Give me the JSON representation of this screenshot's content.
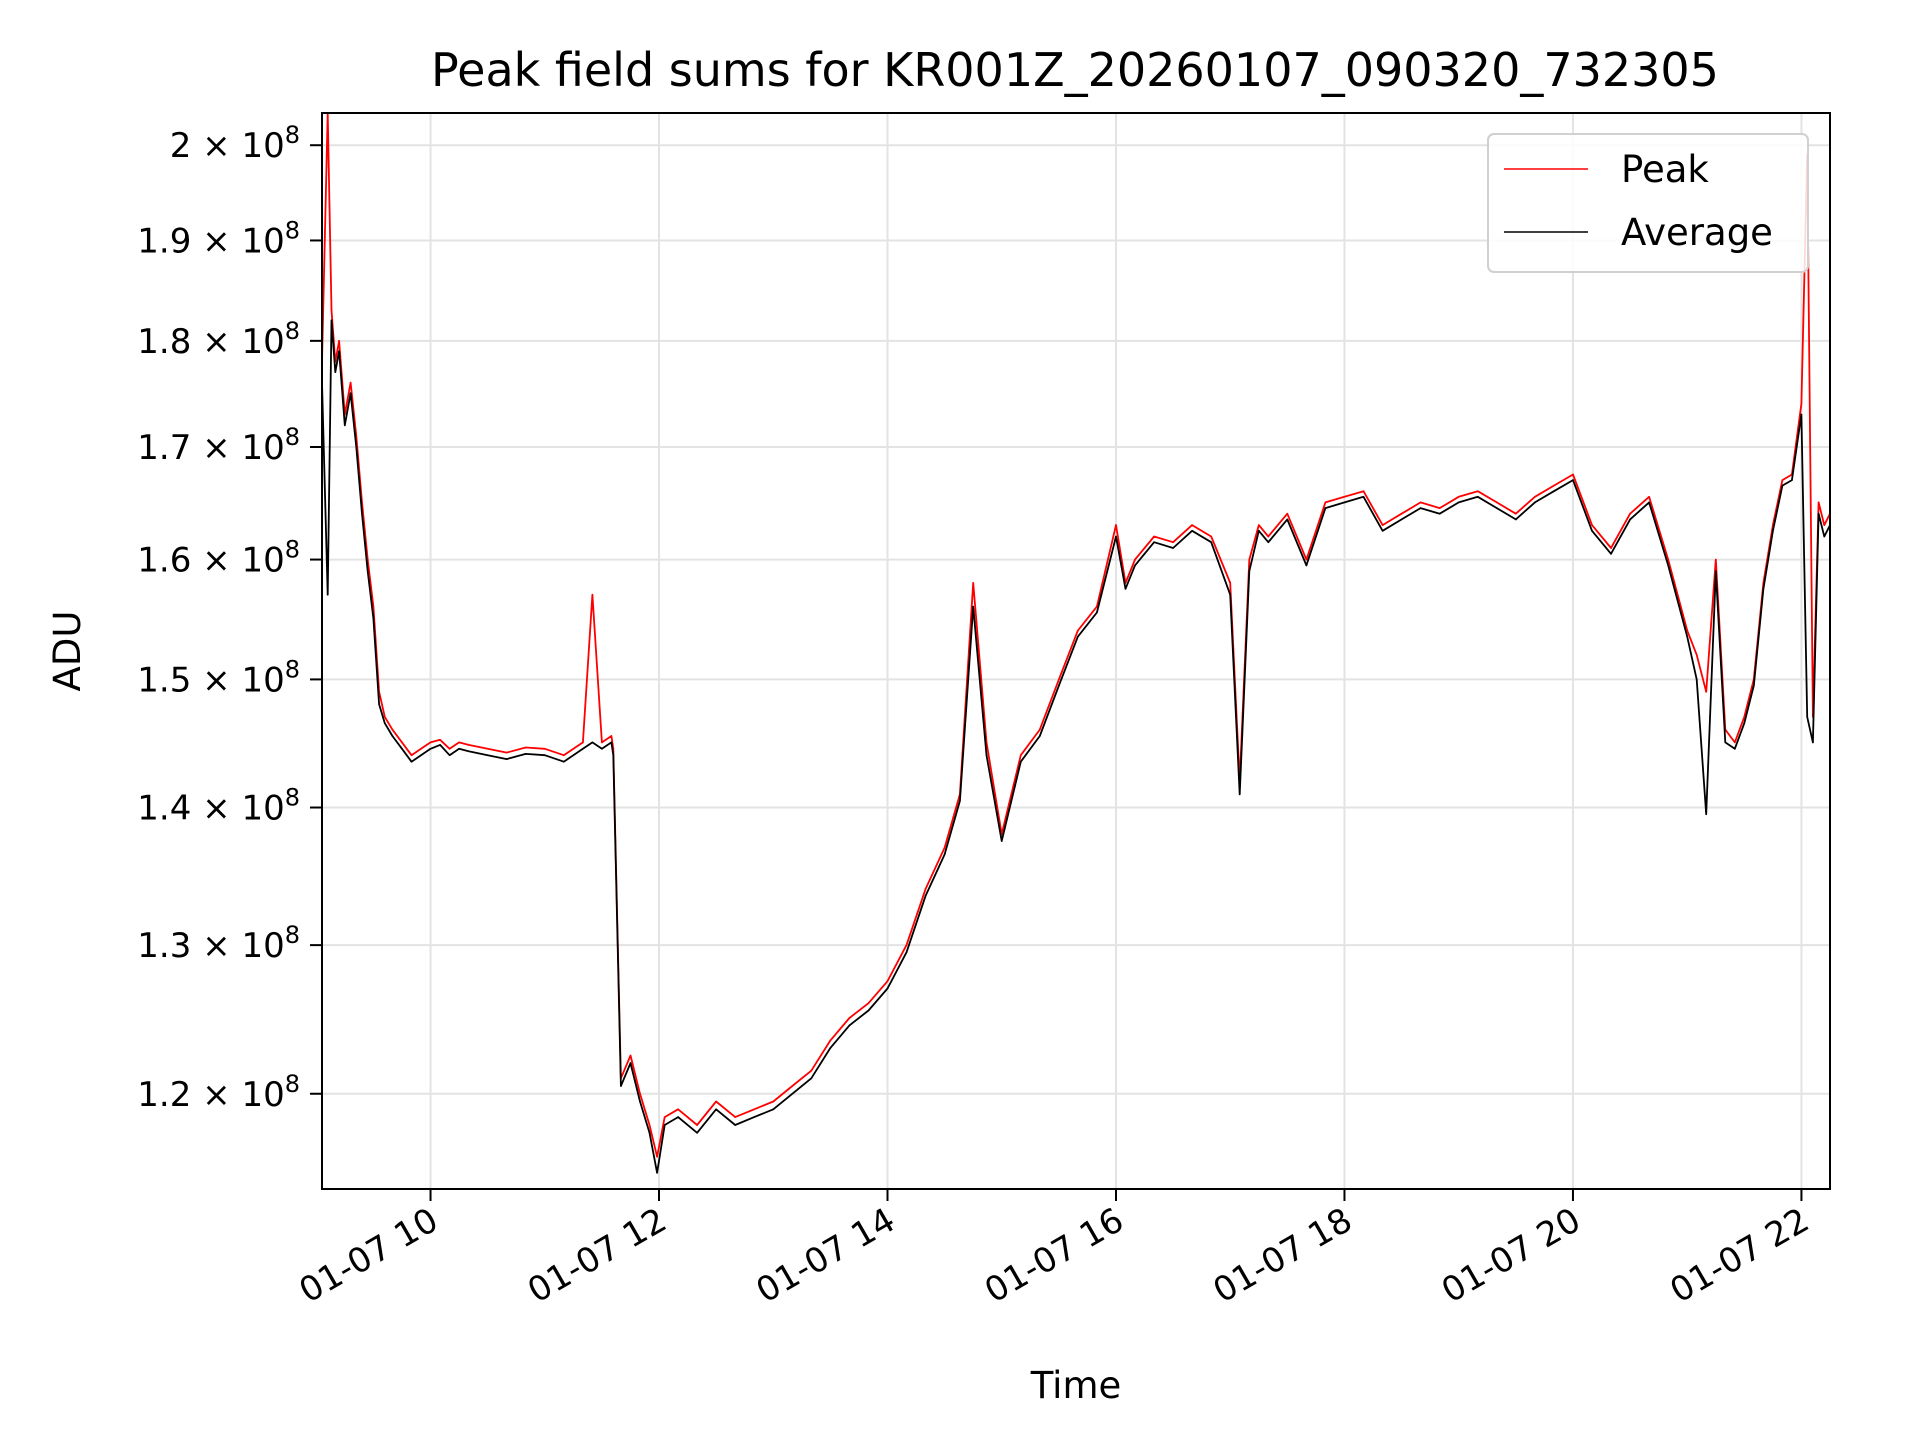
{
  "chart_data": {
    "type": "line",
    "title": "Peak field sums for KR001Z_20260107_090320_732305",
    "xlabel": "Time",
    "ylabel": "ADU",
    "yscale": "log",
    "xlim": [
      "01-07 09:03",
      "01-07 22:15"
    ],
    "ylim": [
      114000000,
      203500000
    ],
    "x_ticks": [
      {
        "t": "01-07 10:00",
        "label": "01-07 10"
      },
      {
        "t": "01-07 12:00",
        "label": "01-07 12"
      },
      {
        "t": "01-07 14:00",
        "label": "01-07 14"
      },
      {
        "t": "01-07 16:00",
        "label": "01-07 16"
      },
      {
        "t": "01-07 18:00",
        "label": "01-07 18"
      },
      {
        "t": "01-07 20:00",
        "label": "01-07 20"
      },
      {
        "t": "01-07 22:00",
        "label": "01-07 22"
      }
    ],
    "y_ticks": [
      {
        "value": 120000000,
        "coef": "1.2",
        "exp": "8"
      },
      {
        "value": 130000000,
        "coef": "1.3",
        "exp": "8"
      },
      {
        "value": 140000000,
        "coef": "1.4",
        "exp": "8"
      },
      {
        "value": 150000000,
        "coef": "1.5",
        "exp": "8"
      },
      {
        "value": 160000000,
        "coef": "1.6",
        "exp": "8"
      },
      {
        "value": 170000000,
        "coef": "1.7",
        "exp": "8"
      },
      {
        "value": 180000000,
        "coef": "1.8",
        "exp": "8"
      },
      {
        "value": 190000000,
        "coef": "1.9",
        "exp": "8"
      },
      {
        "value": 200000000,
        "coef": "2",
        "exp": "8"
      }
    ],
    "grid": true,
    "legend_position": "top-right",
    "series": [
      {
        "name": "Peak",
        "color": "#ff0000"
      },
      {
        "name": "Average",
        "color": "#000000"
      }
    ],
    "x": [
      "01-07 09:03",
      "01-07 09:06",
      "01-07 09:08",
      "01-07 09:10",
      "01-07 09:12",
      "01-07 09:15",
      "01-07 09:18",
      "01-07 09:21",
      "01-07 09:24",
      "01-07 09:27",
      "01-07 09:30",
      "01-07 09:33",
      "01-07 09:36",
      "01-07 09:40",
      "01-07 09:45",
      "01-07 09:50",
      "01-07 09:55",
      "01-07 10:00",
      "01-07 10:05",
      "01-07 10:10",
      "01-07 10:15",
      "01-07 10:20",
      "01-07 10:30",
      "01-07 10:40",
      "01-07 10:50",
      "01-07 11:00",
      "01-07 11:10",
      "01-07 11:20",
      "01-07 11:25",
      "01-07 11:30",
      "01-07 11:35",
      "01-07 11:36",
      "01-07 11:40",
      "01-07 11:45",
      "01-07 11:50",
      "01-07 11:55",
      "01-07 11:59",
      "01-07 12:03",
      "01-07 12:10",
      "01-07 12:20",
      "01-07 12:30",
      "01-07 12:40",
      "01-07 12:50",
      "01-07 13:00",
      "01-07 13:10",
      "01-07 13:20",
      "01-07 13:30",
      "01-07 13:40",
      "01-07 13:50",
      "01-07 14:00",
      "01-07 14:10",
      "01-07 14:20",
      "01-07 14:30",
      "01-07 14:38",
      "01-07 14:45",
      "01-07 14:52",
      "01-07 15:00",
      "01-07 15:10",
      "01-07 15:20",
      "01-07 15:30",
      "01-07 15:40",
      "01-07 15:50",
      "01-07 16:00",
      "01-07 16:05",
      "01-07 16:10",
      "01-07 16:20",
      "01-07 16:30",
      "01-07 16:40",
      "01-07 16:50",
      "01-07 17:00",
      "01-07 17:05",
      "01-07 17:10",
      "01-07 17:15",
      "01-07 17:20",
      "01-07 17:30",
      "01-07 17:40",
      "01-07 17:50",
      "01-07 18:00",
      "01-07 18:10",
      "01-07 18:20",
      "01-07 18:30",
      "01-07 18:40",
      "01-07 18:50",
      "01-07 19:00",
      "01-07 19:10",
      "01-07 19:20",
      "01-07 19:30",
      "01-07 19:40",
      "01-07 19:50",
      "01-07 20:00",
      "01-07 20:10",
      "01-07 20:20",
      "01-07 20:30",
      "01-07 20:40",
      "01-07 20:50",
      "01-07 21:00",
      "01-07 21:05",
      "01-07 21:10",
      "01-07 21:15",
      "01-07 21:20",
      "01-07 21:25",
      "01-07 21:30",
      "01-07 21:35",
      "01-07 21:40",
      "01-07 21:45",
      "01-07 21:50",
      "01-07 21:55",
      "01-07 22:00",
      "01-07 22:03",
      "01-07 22:06",
      "01-07 22:09",
      "01-07 22:12",
      "01-07 22:15"
    ],
    "peak_values": [
      178000000,
      206000000,
      183000000,
      178000000,
      180000000,
      173000000,
      176000000,
      171000000,
      165000000,
      160000000,
      156000000,
      149000000,
      147000000,
      146000000,
      145000000,
      144000000,
      144500000,
      145000000,
      145200000,
      144500000,
      145000000,
      144800000,
      144500000,
      144200000,
      144600000,
      144500000,
      144000000,
      145000000,
      157000000,
      145000000,
      145500000,
      144500000,
      121000000,
      122500000,
      120000000,
      118000000,
      116000000,
      118500000,
      119000000,
      118000000,
      119500000,
      118500000,
      119000000,
      119500000,
      120500000,
      121500000,
      123500000,
      125000000,
      126000000,
      127500000,
      130000000,
      134000000,
      137000000,
      141000000,
      158000000,
      145000000,
      138000000,
      144000000,
      146000000,
      150000000,
      154000000,
      156000000,
      163000000,
      158000000,
      160000000,
      162000000,
      161500000,
      163000000,
      162000000,
      158000000,
      142000000,
      160000000,
      163000000,
      162000000,
      164000000,
      160000000,
      165000000,
      165500000,
      166000000,
      163000000,
      164000000,
      165000000,
      164500000,
      165500000,
      166000000,
      165000000,
      164000000,
      165500000,
      166500000,
      167500000,
      163000000,
      161000000,
      164000000,
      165500000,
      160000000,
      154000000,
      152000000,
      149000000,
      160000000,
      146000000,
      145000000,
      147000000,
      150000000,
      158000000,
      163000000,
      167000000,
      167500000,
      174000000,
      199000000,
      147000000,
      165000000,
      163000000,
      164000000
    ],
    "avg_values": [
      176000000,
      157000000,
      182000000,
      177000000,
      179000000,
      172000000,
      175000000,
      170000000,
      164000000,
      159000000,
      155000000,
      148000000,
      146500000,
      145500000,
      144500000,
      143500000,
      144000000,
      144500000,
      144800000,
      144000000,
      144500000,
      144300000,
      144000000,
      143700000,
      144100000,
      144000000,
      143500000,
      144500000,
      145000000,
      144500000,
      145000000,
      144000000,
      120500000,
      122000000,
      119500000,
      117500000,
      115000000,
      118000000,
      118500000,
      117500000,
      119000000,
      118000000,
      118500000,
      119000000,
      120000000,
      121000000,
      123000000,
      124500000,
      125500000,
      127000000,
      129500000,
      133500000,
      136500000,
      140500000,
      156000000,
      144000000,
      137500000,
      143500000,
      145500000,
      149500000,
      153500000,
      155500000,
      162000000,
      157500000,
      159500000,
      161500000,
      161000000,
      162500000,
      161500000,
      157000000,
      141000000,
      159000000,
      162500000,
      161500000,
      163500000,
      159500000,
      164500000,
      165000000,
      165500000,
      162500000,
      163500000,
      164500000,
      164000000,
      165000000,
      165500000,
      164500000,
      163500000,
      165000000,
      166000000,
      167000000,
      162500000,
      160500000,
      163500000,
      165000000,
      159500000,
      153500000,
      150000000,
      139500000,
      159000000,
      145000000,
      144500000,
      146500000,
      149500000,
      157500000,
      162500000,
      166500000,
      167000000,
      173000000,
      147000000,
      145000000,
      164000000,
      162000000,
      163000000
    ]
  }
}
